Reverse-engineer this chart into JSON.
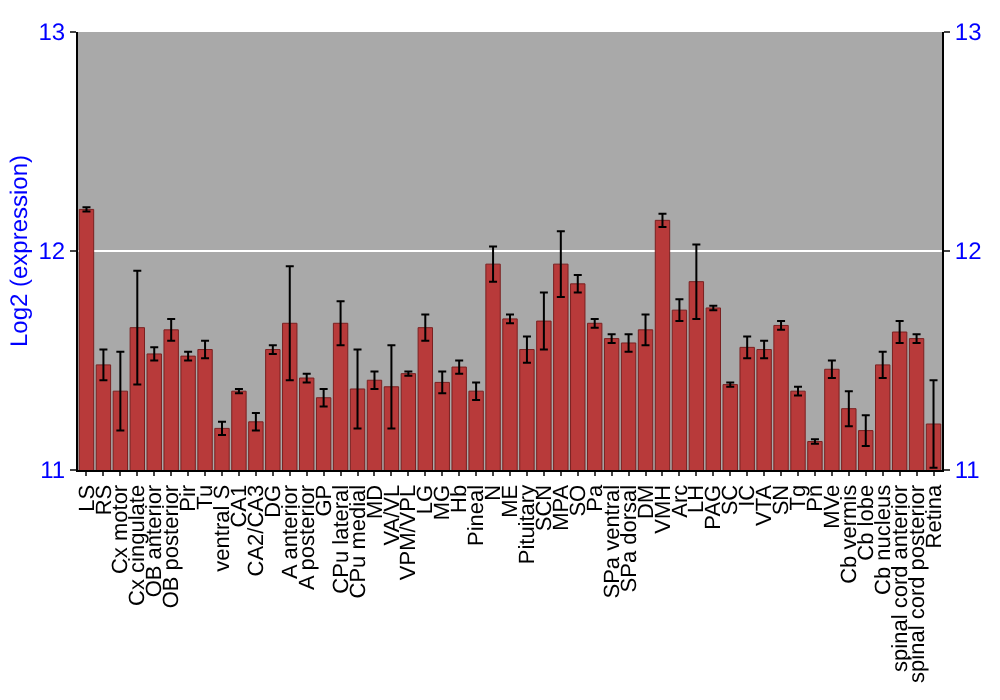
{
  "chart_data": {
    "type": "bar",
    "ylabel": "Log2 (expression)",
    "categories": [
      "LS",
      "RS",
      "Cx motor",
      "Cx cingulate",
      "OB anterior",
      "OB posterior",
      "Pir",
      "Tu",
      "ventral S",
      "CA1",
      "CA2/CA3",
      "DG",
      "A anterior",
      "A posterior",
      "GP",
      "CPu lateral",
      "CPu medial",
      "MD",
      "VA/VL",
      "VPM/VPL",
      "LG",
      "MG",
      "Hb",
      "Pineal",
      "N",
      "ME",
      "Pituitary",
      "SCN",
      "MPA",
      "SO",
      "Pa",
      "SPa ventral",
      "SPa dorsal",
      "DM",
      "VMH",
      "Arc",
      "LH",
      "PAG",
      "SC",
      "IC",
      "VTA",
      "SN",
      "Tg",
      "Pn",
      "MVe",
      "Cb vermis",
      "Cb lobe",
      "Cb nucleus",
      "spinal cord anterior",
      "spinal cord posterior",
      "Retina"
    ],
    "values": [
      12.19,
      11.48,
      11.36,
      11.65,
      11.53,
      11.64,
      11.52,
      11.55,
      11.19,
      11.36,
      11.22,
      11.55,
      11.67,
      11.42,
      11.33,
      11.67,
      11.37,
      11.41,
      11.38,
      11.44,
      11.65,
      11.4,
      11.47,
      11.36,
      11.94,
      11.69,
      11.55,
      11.68,
      11.94,
      11.85,
      11.67,
      11.6,
      11.58,
      11.64,
      12.14,
      11.73,
      11.86,
      11.74,
      11.39,
      11.56,
      11.55,
      11.66,
      11.36,
      11.13,
      11.46,
      11.28,
      11.18,
      11.48,
      11.63,
      11.6,
      11.21
    ],
    "errors": [
      0.01,
      0.07,
      0.18,
      0.26,
      0.03,
      0.05,
      0.02,
      0.04,
      0.03,
      0.01,
      0.04,
      0.02,
      0.26,
      0.02,
      0.04,
      0.1,
      0.18,
      0.04,
      0.19,
      0.01,
      0.06,
      0.05,
      0.03,
      0.04,
      0.08,
      0.02,
      0.06,
      0.13,
      0.15,
      0.04,
      0.02,
      0.02,
      0.04,
      0.07,
      0.03,
      0.05,
      0.17,
      0.01,
      0.01,
      0.05,
      0.04,
      0.02,
      0.02,
      0.01,
      0.04,
      0.08,
      0.07,
      0.06,
      0.05,
      0.02,
      0.2
    ],
    "color": "#b83a3a",
    "ylim": [
      11,
      13
    ],
    "yticks": [
      11,
      12,
      13
    ],
    "y2lim": [
      11,
      13
    ],
    "y2ticks": [
      11,
      12,
      13
    ],
    "grid": "y"
  }
}
